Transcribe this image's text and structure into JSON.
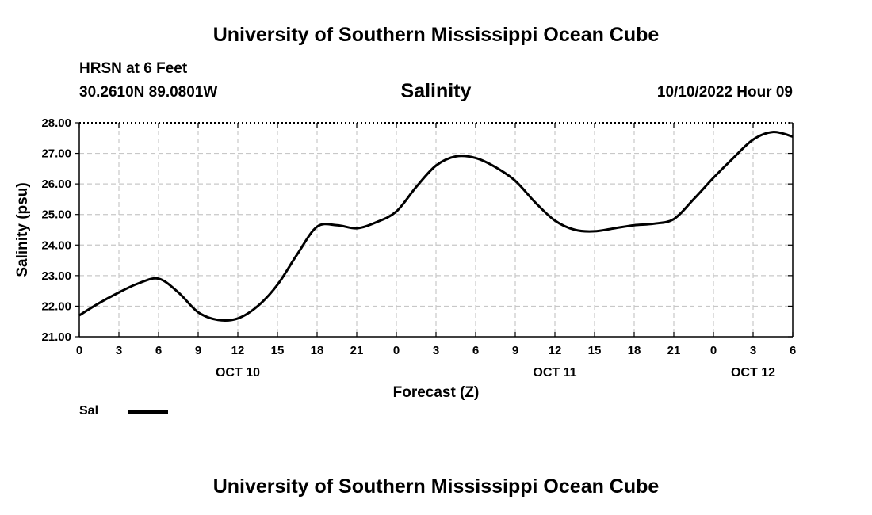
{
  "title": "University of Southern Mississippi Ocean Cube",
  "footer_title": "University of Southern Mississippi Ocean Cube",
  "station": "HRSN at 6 Feet",
  "coordinates": "30.2610N  89.0801W",
  "datetime": "10/10/2022 Hour 09",
  "legend": {
    "label": "Sal",
    "color": "#000000"
  },
  "chart_data": {
    "type": "line",
    "title": "Salinity",
    "xlabel": "Forecast (Z)",
    "ylabel": "Salinity (psu)",
    "x_unit": "hours since OCT 10 00Z",
    "xlim": [
      0,
      54
    ],
    "ylim": [
      21,
      28
    ],
    "yticks": [
      "21.00",
      "22.00",
      "23.00",
      "24.00",
      "25.00",
      "26.00",
      "27.00",
      "28.00"
    ],
    "xticks": [
      0,
      3,
      6,
      9,
      12,
      15,
      18,
      21,
      24,
      27,
      30,
      33,
      36,
      39,
      42,
      45,
      48,
      51,
      54
    ],
    "xtick_labels": [
      "0",
      "3",
      "6",
      "9",
      "12",
      "15",
      "18",
      "21",
      "0",
      "3",
      "6",
      "9",
      "12",
      "15",
      "18",
      "21",
      "0",
      "3",
      "6"
    ],
    "day_labels": [
      {
        "x": 12,
        "label": "OCT 10"
      },
      {
        "x": 36,
        "label": "OCT 11"
      },
      {
        "x": 51,
        "label": "OCT 12"
      }
    ],
    "grid": true,
    "series": [
      {
        "name": "Sal",
        "color": "#000000",
        "x": [
          0,
          1.5,
          3,
          4.5,
          6,
          7.5,
          9,
          10.5,
          12,
          13.5,
          15,
          16.5,
          18,
          19.5,
          21,
          22.5,
          24,
          25.5,
          27,
          28.5,
          30,
          31.5,
          33,
          34.5,
          36,
          37.5,
          39,
          40.5,
          42,
          43.5,
          45,
          46.5,
          48,
          49.5,
          51,
          52.5,
          54
        ],
        "values": [
          21.7,
          22.1,
          22.45,
          22.75,
          22.9,
          22.45,
          21.8,
          21.55,
          21.6,
          22.0,
          22.7,
          23.7,
          24.6,
          24.65,
          24.55,
          24.75,
          25.1,
          25.9,
          26.6,
          26.9,
          26.85,
          26.55,
          26.1,
          25.4,
          24.8,
          24.5,
          24.45,
          24.55,
          24.65,
          24.7,
          24.85,
          25.5,
          26.2,
          26.85,
          27.45,
          27.7,
          27.55
        ]
      }
    ]
  }
}
